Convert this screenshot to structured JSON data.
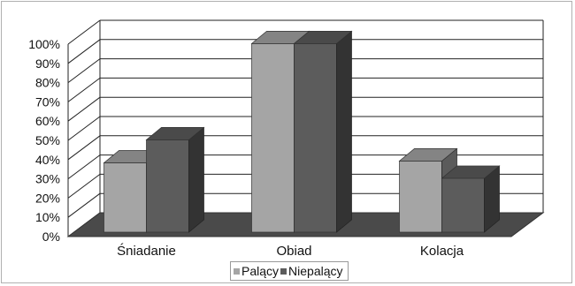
{
  "chart_data": {
    "type": "bar",
    "title": "",
    "xlabel": "",
    "ylabel": "",
    "categories": [
      "Śniadanie",
      "Obiad",
      "Kolacja"
    ],
    "series": [
      {
        "name": "Palący",
        "values": [
          0.36,
          0.98,
          0.37
        ],
        "color": "#a5a5a5"
      },
      {
        "name": "Niepalący",
        "values": [
          0.48,
          0.98,
          0.28
        ],
        "color": "#5c5c5c"
      }
    ],
    "ylim": [
      0,
      1
    ],
    "yticks": [
      "0%",
      "10%",
      "20%",
      "30%",
      "40%",
      "50%",
      "60%",
      "70%",
      "80%",
      "90%",
      "100%"
    ],
    "grid": true,
    "legend_position": "bottom",
    "three_d": true
  }
}
